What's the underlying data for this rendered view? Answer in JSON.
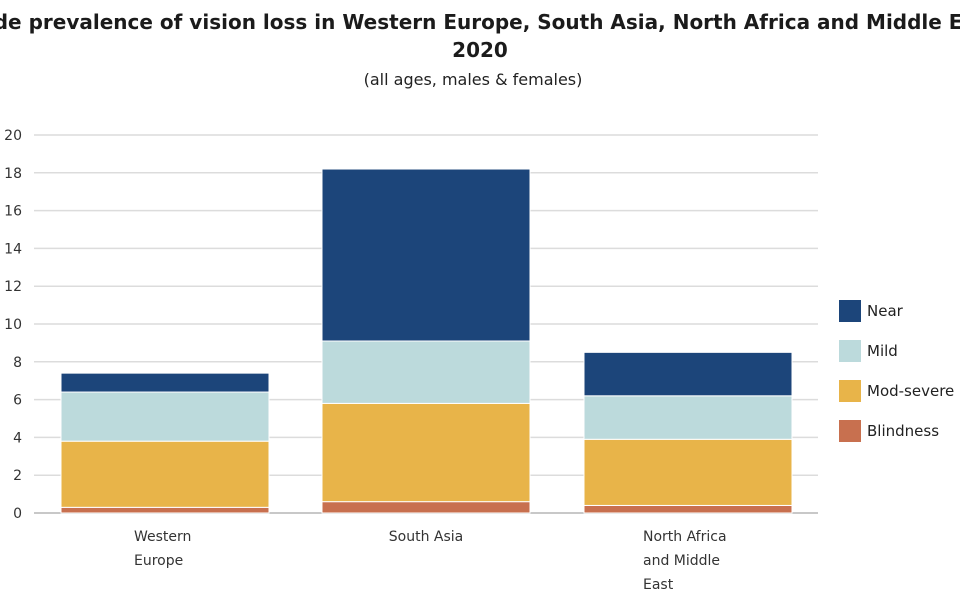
{
  "chart_data": {
    "type": "bar",
    "stacked": true,
    "title_line1": "Crude prevalence of vision loss in Western Europe, South Asia, North Africa and Middle East,",
    "title_line2": "2020",
    "subtitle": "(all ages, males & females)",
    "categories": [
      [
        "Western",
        "Europe"
      ],
      [
        "South Asia"
      ],
      [
        "North Africa",
        "and Middle",
        "East"
      ]
    ],
    "ylim": [
      0,
      20
    ],
    "yticks": [
      0,
      2,
      4,
      6,
      8,
      10,
      12,
      14,
      16,
      18,
      20
    ],
    "grid": true,
    "legend_placement": "right",
    "series": [
      {
        "name": "Blindness",
        "color": "#c8704f",
        "values": [
          0.3,
          0.6,
          0.4
        ]
      },
      {
        "name": "Mod-severe",
        "color": "#e8b449",
        "values": [
          3.5,
          5.2,
          3.5
        ]
      },
      {
        "name": "Mild",
        "color": "#bcdadc",
        "values": [
          2.6,
          3.3,
          2.3
        ]
      },
      {
        "name": "Near",
        "color": "#1c457a",
        "values": [
          1.0,
          9.1,
          2.3
        ]
      }
    ],
    "legend_order": [
      "Near",
      "Mild",
      "Mod-severe",
      "Blindness"
    ]
  }
}
